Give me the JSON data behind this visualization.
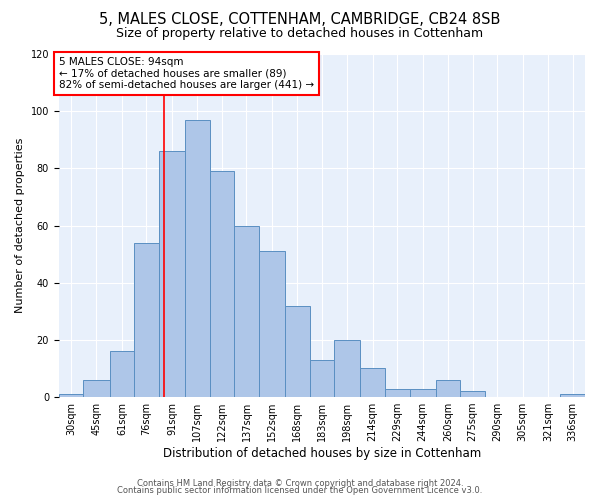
{
  "title1": "5, MALES CLOSE, COTTENHAM, CAMBRIDGE, CB24 8SB",
  "title2": "Size of property relative to detached houses in Cottenham",
  "xlabel": "Distribution of detached houses by size in Cottenham",
  "ylabel": "Number of detached properties",
  "bar_labels": [
    "30sqm",
    "45sqm",
    "61sqm",
    "76sqm",
    "91sqm",
    "107sqm",
    "122sqm",
    "137sqm",
    "152sqm",
    "168sqm",
    "183sqm",
    "198sqm",
    "214sqm",
    "229sqm",
    "244sqm",
    "260sqm",
    "275sqm",
    "290sqm",
    "305sqm",
    "321sqm",
    "336sqm"
  ],
  "bar_values": [
    1,
    6,
    16,
    54,
    86,
    97,
    79,
    60,
    51,
    32,
    13,
    20,
    10,
    3,
    3,
    6,
    2,
    0,
    0,
    0,
    1
  ],
  "bar_color": "#aec6e8",
  "bar_edge_color": "#5a8fc2",
  "ylim": [
    0,
    120
  ],
  "yticks": [
    0,
    20,
    40,
    60,
    80,
    100,
    120
  ],
  "red_line_x": 94,
  "bin_edges": [
    30,
    45,
    61,
    76,
    91,
    107,
    122,
    137,
    152,
    168,
    183,
    198,
    214,
    229,
    244,
    260,
    275,
    290,
    305,
    321,
    336,
    351
  ],
  "annotation_text": "5 MALES CLOSE: 94sqm\n← 17% of detached houses are smaller (89)\n82% of semi-detached houses are larger (441) →",
  "annotation_box_color": "white",
  "annotation_box_edge_color": "red",
  "footer1": "Contains HM Land Registry data © Crown copyright and database right 2024.",
  "footer2": "Contains public sector information licensed under the Open Government Licence v3.0.",
  "background_color": "#e8f0fb",
  "title_fontsize": 10.5,
  "subtitle_fontsize": 9,
  "tick_fontsize": 7,
  "ylabel_fontsize": 8,
  "xlabel_fontsize": 8.5,
  "footer_fontsize": 6,
  "annotation_fontsize": 7.5
}
